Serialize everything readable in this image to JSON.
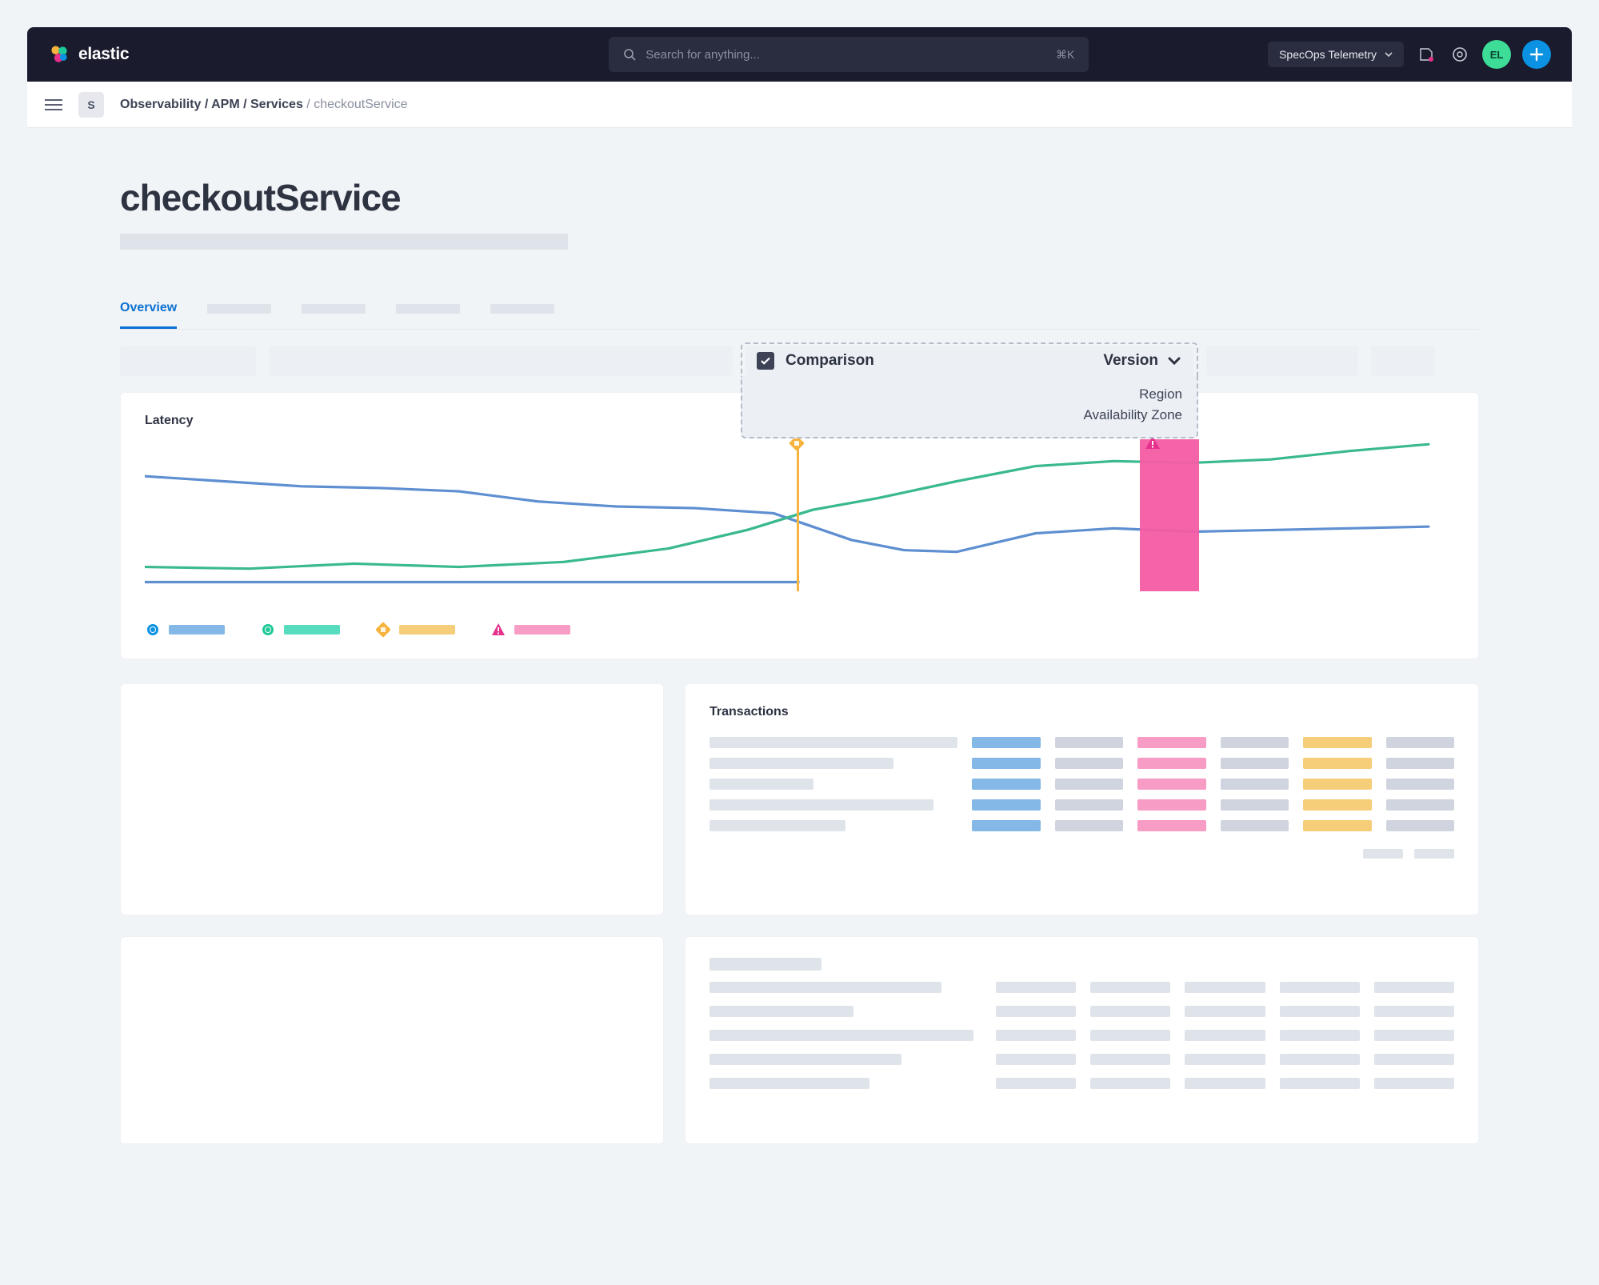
{
  "header": {
    "brand": "elastic",
    "search_placeholder": "Search for anything...",
    "search_shortcut": "⌘K",
    "space_selector": "SpecOps Telemetry",
    "avatar_initials": "EL"
  },
  "breadcrumb": {
    "space_initial": "S",
    "path_bold": "Observability / APM / Services",
    "path_leaf": "/ checkoutService"
  },
  "page": {
    "title": "checkoutService",
    "active_tab": "Overview"
  },
  "comparison": {
    "label": "Comparison",
    "checked": true,
    "selected": "Version",
    "options": [
      "Region",
      "Availability Zone"
    ]
  },
  "latency_chart": {
    "title": "Latency",
    "type": "line",
    "width_units": 1000,
    "height_units": 200,
    "ylim": [
      0,
      200
    ],
    "background_color": "#ffffff",
    "line_width": 3,
    "alert_band": {
      "x_start": 760,
      "x_end": 805,
      "color": "#f45ca3"
    },
    "deploy_marker": {
      "x": 498,
      "color": "#f6b33d"
    },
    "alert_marker": {
      "x": 770,
      "color": "#e6318c"
    },
    "series": [
      {
        "name": "blue",
        "color": "#5e8fd1",
        "points": [
          [
            0,
            44
          ],
          [
            60,
            50
          ],
          [
            120,
            56
          ],
          [
            180,
            58
          ],
          [
            240,
            62
          ],
          [
            300,
            74
          ],
          [
            360,
            80
          ],
          [
            420,
            82
          ],
          [
            480,
            88
          ],
          [
            540,
            120
          ],
          [
            580,
            132
          ],
          [
            620,
            134
          ],
          [
            680,
            112
          ],
          [
            740,
            106
          ],
          [
            800,
            110
          ],
          [
            860,
            108
          ],
          [
            920,
            106
          ],
          [
            980,
            104
          ]
        ]
      },
      {
        "name": "green",
        "color": "#3ab98f",
        "points": [
          [
            0,
            152
          ],
          [
            80,
            154
          ],
          [
            160,
            148
          ],
          [
            240,
            152
          ],
          [
            320,
            146
          ],
          [
            400,
            130
          ],
          [
            460,
            108
          ],
          [
            510,
            84
          ],
          [
            560,
            70
          ],
          [
            620,
            50
          ],
          [
            680,
            32
          ],
          [
            740,
            26
          ],
          [
            800,
            28
          ],
          [
            860,
            24
          ],
          [
            920,
            14
          ],
          [
            980,
            6
          ]
        ]
      }
    ],
    "baseline_y": 170,
    "baseline_color": "#5e8fd1",
    "baseline_from_x": 0,
    "baseline_to_x": 500,
    "legend": [
      {
        "symbol": "circle",
        "symbol_color": "#0b92e3",
        "bar_color": "#84b8e6"
      },
      {
        "symbol": "circle",
        "symbol_color": "#1fc999",
        "bar_color": "#57dcc0"
      },
      {
        "symbol": "box",
        "symbol_color": "#f6b33d",
        "bar_color": "#f6ce7a"
      },
      {
        "symbol": "alert",
        "symbol_color": "#e6318c",
        "bar_color": "#f79cc5"
      }
    ]
  },
  "transactions": {
    "title": "Transactions",
    "rows": [
      {
        "label_w": 310,
        "cols": [
          "blue",
          "grey",
          "pink",
          "grey",
          "yellow",
          "grey"
        ]
      },
      {
        "label_w": 230,
        "cols": [
          "blue",
          "grey",
          "pink",
          "grey",
          "yellow",
          "grey"
        ]
      },
      {
        "label_w": 130,
        "cols": [
          "blue",
          "grey",
          "pink",
          "grey",
          "yellow",
          "grey"
        ]
      },
      {
        "label_w": 280,
        "cols": [
          "blue",
          "grey",
          "pink",
          "grey",
          "yellow",
          "grey"
        ]
      },
      {
        "label_w": 170,
        "cols": [
          "blue",
          "grey",
          "pink",
          "grey",
          "yellow",
          "grey"
        ]
      }
    ]
  },
  "colors": {
    "page_bg": "#f1f4f7",
    "placeholder": "#dfe3ea",
    "text_dark": "#2e3342",
    "accent_blue": "#0b70d1"
  }
}
